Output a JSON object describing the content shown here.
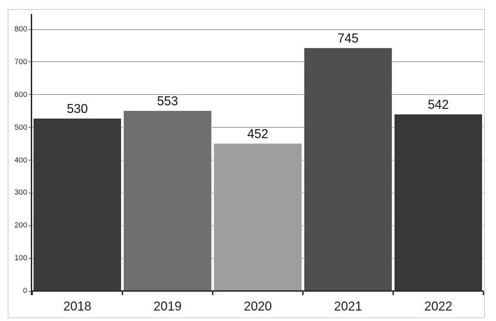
{
  "chart_data": {
    "type": "bar",
    "title": "",
    "xlabel": "",
    "ylabel": "",
    "categories": [
      "2018",
      "2019",
      "2020",
      "2021",
      "2022"
    ],
    "values": [
      530,
      553,
      452,
      745,
      542
    ],
    "value_labels": [
      "530",
      "553",
      "452",
      "745",
      "542"
    ],
    "bar_colors": [
      "#3b3b3b",
      "#6f6f6f",
      "#9e9e9e",
      "#4f4f4f",
      "#383838"
    ],
    "ylim": [
      0,
      800
    ],
    "ytick_step": 100,
    "yticks": [
      0,
      100,
      200,
      300,
      400,
      500,
      600,
      700,
      800
    ],
    "grid": true,
    "legend_position": "none"
  },
  "colors": {
    "background": "#ffffff",
    "canvas_border": "#c9c9c9",
    "gridline": "#909090",
    "axis": "#2b2b2b",
    "bar_edge": "#e8e8e8",
    "value_label_text": "#111111",
    "tick_label_text": "#222222"
  }
}
